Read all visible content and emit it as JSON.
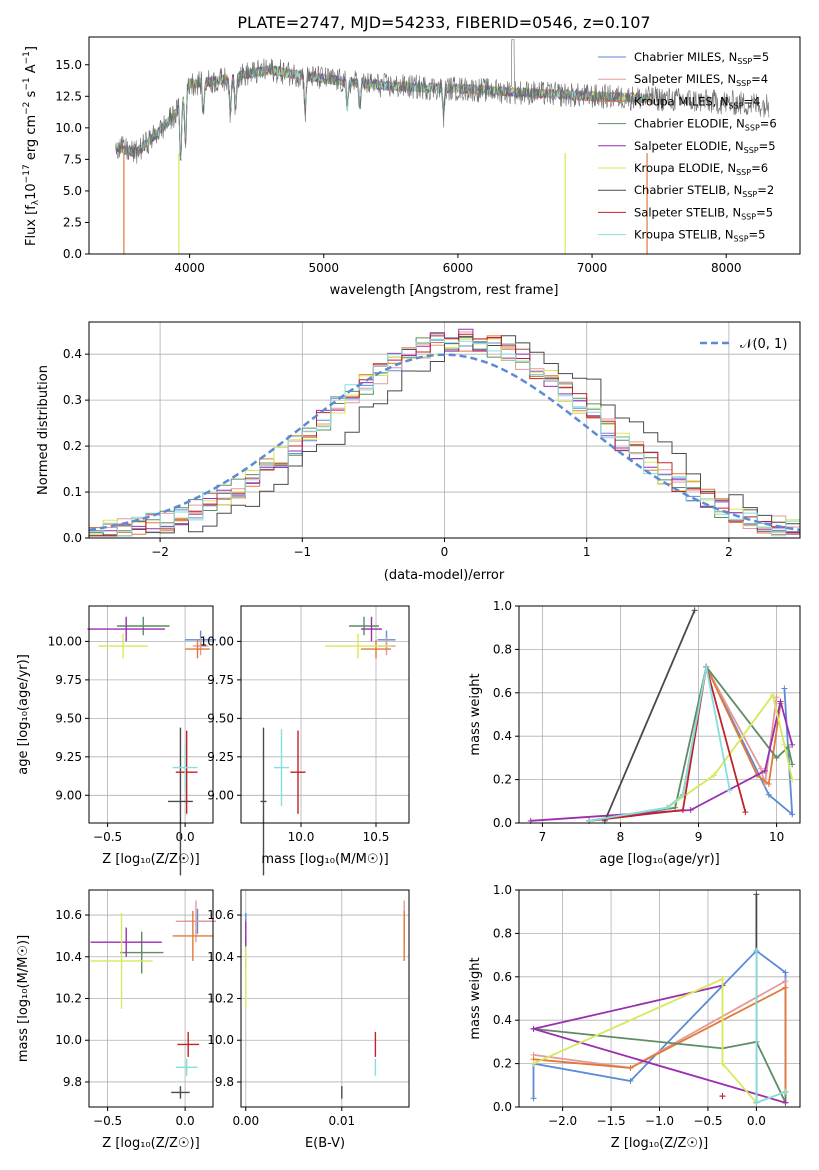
{
  "figure_title": "PLATE=2747, MJD=54233, FIBERID=0546, z=0.107",
  "colors": {
    "Chabrier MILES": "#5b8bd6",
    "Salpeter MILES": "#e39a9a",
    "Kroupa MILES": "#e07a3a",
    "Chabrier ELODIE": "#5e8c64",
    "Salpeter ELODIE": "#9a2fb0",
    "Kroupa ELODIE": "#d8e85a",
    "Chabrier STELIB": "#4a4a4a",
    "Salpeter STELIB": "#c0232a",
    "Kroupa STELIB": "#86dede",
    "gaussian": "#5b8bd6"
  },
  "chart_data": [
    {
      "id": "spectrum",
      "type": "line",
      "xlabel": "wavelength [Angstrom, rest frame]",
      "ylabel": "Flux [f",
      "xlim": [
        3250,
        8550
      ],
      "ylim": [
        0,
        17.2
      ],
      "xticks": [
        "4000",
        "5000",
        "6000",
        "7000",
        "8000"
      ],
      "yticks": [
        "0.0",
        "2.5",
        "5.0",
        "7.5",
        "10.0",
        "12.5",
        "15.0"
      ],
      "grid": false,
      "legend_position": "right",
      "legend": [
        {
          "model": "Chabrier MILES",
          "n": "5"
        },
        {
          "model": "Salpeter MILES",
          "n": "4"
        },
        {
          "model": "Kroupa MILES",
          "n": "4"
        },
        {
          "model": "Chabrier ELODIE",
          "n": "6"
        },
        {
          "model": "Salpeter ELODIE",
          "n": "5"
        },
        {
          "model": "Kroupa ELODIE",
          "n": "6"
        },
        {
          "model": "Chabrier STELIB",
          "n": "2"
        },
        {
          "model": "Salpeter STELIB",
          "n": "5"
        },
        {
          "model": "Kroupa STELIB",
          "n": "5"
        }
      ],
      "continuum": {
        "x": [
          3450,
          3600,
          3700,
          3800,
          3900,
          4000,
          4200,
          4400,
          4600,
          4800,
          5000,
          5200,
          5500,
          6000,
          6500,
          7000,
          7500,
          8000,
          8300
        ],
        "y": [
          8.5,
          8.0,
          9.0,
          10.0,
          11.2,
          13.5,
          13.7,
          14.2,
          14.6,
          14.2,
          13.9,
          13.6,
          13.3,
          13.1,
          12.8,
          12.5,
          12.3,
          12.0,
          11.8
        ]
      }
    },
    {
      "id": "residuals",
      "type": "histogram",
      "xlabel": "(data-model)/error",
      "ylabel": "Normed distribution",
      "xlim": [
        -2.5,
        2.5
      ],
      "ylim": [
        0,
        0.47
      ],
      "xticks": [
        "−2",
        "−1",
        "0",
        "1",
        "2"
      ],
      "yticks": [
        "0.0",
        "0.1",
        "0.2",
        "0.3",
        "0.4"
      ],
      "grid": true,
      "bin_width": 0.1,
      "legend_position": "top-right",
      "legend": [
        "𝒩(0, 1)"
      ]
    },
    {
      "id": "age_vs_Z",
      "type": "errorbar",
      "xlabel": "Z [log₁₀(Z/Z☉)]",
      "ylabel": "age  [log₁₀(age/yr)]",
      "xlim": [
        -0.62,
        0.18
      ],
      "ylim": [
        8.82,
        10.23
      ],
      "xticks": [
        "−0.5",
        "0.0"
      ],
      "yticks": [
        "9.00",
        "9.25",
        "9.50",
        "9.75",
        "10.00"
      ],
      "grid": true,
      "points": [
        {
          "model": "Chabrier MILES",
          "x": 0.1,
          "y": 10.01,
          "xerr": 0.1,
          "yerr": 0.06
        },
        {
          "model": "Salpeter MILES",
          "x": 0.1,
          "y": 9.97,
          "xerr": 0.05,
          "yerr": 0.06
        },
        {
          "model": "Kroupa MILES",
          "x": 0.08,
          "y": 9.95,
          "xerr": 0.08,
          "yerr": 0.06
        },
        {
          "model": "Chabrier ELODIE",
          "x": -0.27,
          "y": 10.1,
          "xerr": 0.17,
          "yerr": 0.06
        },
        {
          "model": "Salpeter ELODIE",
          "x": -0.38,
          "y": 10.08,
          "xerr": 0.25,
          "yerr": 0.08
        },
        {
          "model": "Kroupa ELODIE",
          "x": -0.4,
          "y": 9.97,
          "xerr": 0.16,
          "yerr": 0.08
        },
        {
          "model": "Chabrier STELIB",
          "x": -0.03,
          "y": 8.96,
          "xerr": 0.08,
          "yerr": 0.48
        },
        {
          "model": "Salpeter STELIB",
          "x": 0.01,
          "y": 9.15,
          "xerr": 0.07,
          "yerr": 0.27
        },
        {
          "model": "Kroupa STELIB",
          "x": 0.0,
          "y": 9.18,
          "xerr": 0.08,
          "yerr": 0.15
        }
      ]
    },
    {
      "id": "age_vs_mass",
      "type": "errorbar",
      "xlabel": "mass [log₁₀(M/M☉)]",
      "ylabel": "",
      "xlim": [
        9.6,
        10.72
      ],
      "ylim": [
        8.82,
        10.23
      ],
      "xticks": [
        "10.0",
        "10.5"
      ],
      "yticks": [
        "9.00",
        "9.25",
        "9.50",
        "9.75",
        "10.00"
      ],
      "grid": true,
      "points": [
        {
          "model": "Chabrier MILES",
          "x": 10.57,
          "y": 10.01,
          "xerr": 0.06,
          "yerr": 0.06
        },
        {
          "model": "Salpeter MILES",
          "x": 10.57,
          "y": 9.97,
          "xerr": 0.06,
          "yerr": 0.06
        },
        {
          "model": "Kroupa MILES",
          "x": 10.5,
          "y": 9.95,
          "xerr": 0.1,
          "yerr": 0.06
        },
        {
          "model": "Chabrier ELODIE",
          "x": 10.42,
          "y": 10.1,
          "xerr": 0.1,
          "yerr": 0.06
        },
        {
          "model": "Salpeter ELODIE",
          "x": 10.47,
          "y": 10.08,
          "xerr": 0.07,
          "yerr": 0.08
        },
        {
          "model": "Kroupa ELODIE",
          "x": 10.38,
          "y": 9.97,
          "xerr": 0.22,
          "yerr": 0.08
        },
        {
          "model": "Chabrier STELIB",
          "x": 9.75,
          "y": 8.96,
          "xerr": 0.02,
          "yerr": 0.48
        },
        {
          "model": "Salpeter STELIB",
          "x": 9.98,
          "y": 9.15,
          "xerr": 0.05,
          "yerr": 0.27
        },
        {
          "model": "Kroupa STELIB",
          "x": 9.87,
          "y": 9.18,
          "xerr": 0.05,
          "yerr": 0.25
        }
      ]
    },
    {
      "id": "weight_vs_age",
      "type": "line",
      "xlabel": "age  [log₁₀(age/yr)]",
      "ylabel": "mass weight",
      "xlim": [
        6.7,
        10.3
      ],
      "ylim": [
        0,
        1.0
      ],
      "xticks": [
        "7",
        "8",
        "9",
        "10"
      ],
      "yticks": [
        "0.0",
        "0.2",
        "0.4",
        "0.6",
        "0.8",
        "1.0"
      ],
      "grid": true,
      "series": [
        {
          "model": "Chabrier MILES",
          "x": [
            7.6,
            8.6,
            8.8,
            9.1,
            9.9,
            10.2,
            10.1
          ],
          "y": [
            0.01,
            0.07,
            0.13,
            0.72,
            0.13,
            0.04,
            0.62
          ]
        },
        {
          "model": "Salpeter MILES",
          "x": [
            7.6,
            8.6,
            8.8,
            9.1,
            9.8,
            9.85,
            10.0
          ],
          "y": [
            0.01,
            0.07,
            0.13,
            0.72,
            0.25,
            0.18,
            0.58
          ]
        },
        {
          "model": "Kroupa MILES",
          "x": [
            7.6,
            8.6,
            8.8,
            9.1,
            9.75,
            9.9,
            10.05
          ],
          "y": [
            0.01,
            0.07,
            0.13,
            0.72,
            0.22,
            0.18,
            0.55
          ]
        },
        {
          "model": "Chabrier ELODIE",
          "x": [
            7.6,
            8.7,
            9.1,
            10.0,
            10.15,
            10.2
          ],
          "y": [
            0.01,
            0.07,
            0.72,
            0.3,
            0.35,
            0.27
          ]
        },
        {
          "model": "Salpeter ELODIE",
          "x": [
            6.85,
            8.9,
            9.85,
            10.05,
            10.2
          ],
          "y": [
            0.01,
            0.06,
            0.24,
            0.56,
            0.36
          ]
        },
        {
          "model": "Kroupa ELODIE",
          "x": [
            7.6,
            8.6,
            9.2,
            9.95,
            10.1,
            10.2
          ],
          "y": [
            0.01,
            0.07,
            0.22,
            0.59,
            0.36,
            0.2
          ]
        },
        {
          "model": "Chabrier STELIB",
          "x": [
            7.8,
            8.95
          ],
          "y": [
            0.01,
            0.98
          ]
        },
        {
          "model": "Salpeter STELIB",
          "x": [
            7.6,
            8.8,
            9.1,
            9.6
          ],
          "y": [
            0.01,
            0.06,
            0.72,
            0.05
          ]
        },
        {
          "model": "Kroupa STELIB",
          "x": [
            7.6,
            8.6,
            8.8,
            9.1,
            9.4
          ],
          "y": [
            0.01,
            0.07,
            0.13,
            0.72,
            0.15
          ]
        }
      ]
    },
    {
      "id": "mass_vs_Z",
      "type": "errorbar",
      "xlabel": "Z [log₁₀(Z/Z☉)]",
      "ylabel": "mass [log₁₀(M/M☉)]",
      "xlim": [
        -0.62,
        0.18
      ],
      "ylim": [
        9.68,
        10.72
      ],
      "xticks": [
        "−0.5",
        "0.0"
      ],
      "yticks": [
        "9.8",
        "10.0",
        "10.2",
        "10.4",
        "10.6"
      ],
      "grid": true,
      "points": [
        {
          "model": "Chabrier MILES",
          "x": 0.08,
          "y": 10.57,
          "xerr": 0.09,
          "yerr": 0.06
        },
        {
          "model": "Salpeter MILES",
          "x": 0.07,
          "y": 10.57,
          "xerr": 0.13,
          "yerr": 0.1
        },
        {
          "model": "Kroupa MILES",
          "x": 0.05,
          "y": 10.5,
          "xerr": 0.13,
          "yerr": 0.12
        },
        {
          "model": "Chabrier ELODIE",
          "x": -0.28,
          "y": 10.42,
          "xerr": 0.14,
          "yerr": 0.1
        },
        {
          "model": "Salpeter ELODIE",
          "x": -0.38,
          "y": 10.47,
          "xerr": 0.23,
          "yerr": 0.07
        },
        {
          "model": "Kroupa ELODIE",
          "x": -0.41,
          "y": 10.38,
          "xerr": 0.2,
          "yerr": 0.23
        },
        {
          "model": "Chabrier STELIB",
          "x": -0.03,
          "y": 9.75,
          "xerr": 0.06,
          "yerr": 0.03
        },
        {
          "model": "Salpeter STELIB",
          "x": 0.02,
          "y": 9.98,
          "xerr": 0.07,
          "yerr": 0.06
        },
        {
          "model": "Kroupa STELIB",
          "x": 0.01,
          "y": 9.87,
          "xerr": 0.07,
          "yerr": 0.04
        }
      ]
    },
    {
      "id": "mass_vs_EBV",
      "type": "errorbar",
      "xlabel": "E(B-V)",
      "ylabel": "",
      "xlim": [
        -0.0005,
        0.017
      ],
      "ylim": [
        9.68,
        10.72
      ],
      "xticks": [
        "0.00",
        "0.01"
      ],
      "yticks": [
        "9.8",
        "10.0",
        "10.2",
        "10.4",
        "10.6"
      ],
      "grid": true,
      "points": [
        {
          "model": "Chabrier MILES",
          "x": 0.0,
          "y": 10.57,
          "xerr": 0,
          "yerr": 0.04
        },
        {
          "model": "Salpeter MILES",
          "x": 0.0165,
          "y": 10.57,
          "xerr": 0,
          "yerr": 0.1
        },
        {
          "model": "Kroupa MILES",
          "x": 0.0165,
          "y": 10.5,
          "xerr": 0,
          "yerr": 0.12
        },
        {
          "model": "Chabrier ELODIE",
          "x": 0.0,
          "y": 10.42,
          "xerr": 0,
          "yerr": 0.08
        },
        {
          "model": "Salpeter ELODIE",
          "x": 0.0,
          "y": 10.5,
          "xerr": 0,
          "yerr": 0.07
        },
        {
          "model": "Kroupa ELODIE",
          "x": 0.0,
          "y": 10.3,
          "xerr": 0,
          "yerr": 0.15
        },
        {
          "model": "Chabrier STELIB",
          "x": 0.01,
          "y": 9.75,
          "xerr": 0,
          "yerr": 0.03
        },
        {
          "model": "Salpeter STELIB",
          "x": 0.0135,
          "y": 9.98,
          "xerr": 0,
          "yerr": 0.06
        },
        {
          "model": "Kroupa STELIB",
          "x": 0.0135,
          "y": 9.87,
          "xerr": 0,
          "yerr": 0.04
        }
      ]
    },
    {
      "id": "weight_vs_Z",
      "type": "line",
      "xlabel": "Z [log₁₀(Z/Z☉)]",
      "ylabel": "mass weight",
      "xlim": [
        -2.45,
        0.45
      ],
      "ylim": [
        0,
        1.0
      ],
      "xticks": [
        "−2.0",
        "−1.5",
        "−1.0",
        "−0.5",
        "0.0"
      ],
      "yticks": [
        "0.0",
        "0.2",
        "0.4",
        "0.6",
        "0.8",
        "1.0"
      ],
      "grid": true,
      "series": [
        {
          "model": "Chabrier MILES",
          "x": [
            -2.3,
            -2.3,
            -1.3,
            0.0,
            0.3,
            0.3
          ],
          "y": [
            0.04,
            0.2,
            0.12,
            0.72,
            0.62,
            0.07
          ]
        },
        {
          "model": "Salpeter MILES",
          "x": [
            -2.3,
            -1.3,
            0.3,
            0.3
          ],
          "y": [
            0.24,
            0.18,
            0.58,
            0.02
          ]
        },
        {
          "model": "Kroupa MILES",
          "x": [
            -2.3,
            -1.3,
            0.3,
            0.3
          ],
          "y": [
            0.22,
            0.18,
            0.55,
            0.02
          ]
        },
        {
          "model": "Chabrier ELODIE",
          "x": [
            -2.3,
            -0.35,
            0.0,
            0.3,
            0.3
          ],
          "y": [
            0.36,
            0.27,
            0.3,
            0.02,
            0.07
          ]
        },
        {
          "model": "Salpeter ELODIE",
          "x": [
            -0.35,
            -2.3,
            0.3,
            0.3
          ],
          "y": [
            0.56,
            0.36,
            0.02,
            0.02
          ]
        },
        {
          "model": "Kroupa ELODIE",
          "x": [
            -2.3,
            -0.35,
            -0.35,
            0.0,
            0.3
          ],
          "y": [
            0.2,
            0.59,
            0.2,
            0.02,
            0.07
          ]
        },
        {
          "model": "Chabrier STELIB",
          "x": [
            0.0,
            0.0
          ],
          "y": [
            0.02,
            0.98
          ]
        },
        {
          "model": "Salpeter STELIB",
          "x": [
            -0.35,
            -0.35
          ],
          "y": [
            0.05,
            0.05
          ]
        },
        {
          "model": "Kroupa STELIB",
          "x": [
            0.0,
            0.0,
            0.3
          ],
          "y": [
            0.72,
            0.02,
            0.07
          ]
        }
      ]
    }
  ]
}
